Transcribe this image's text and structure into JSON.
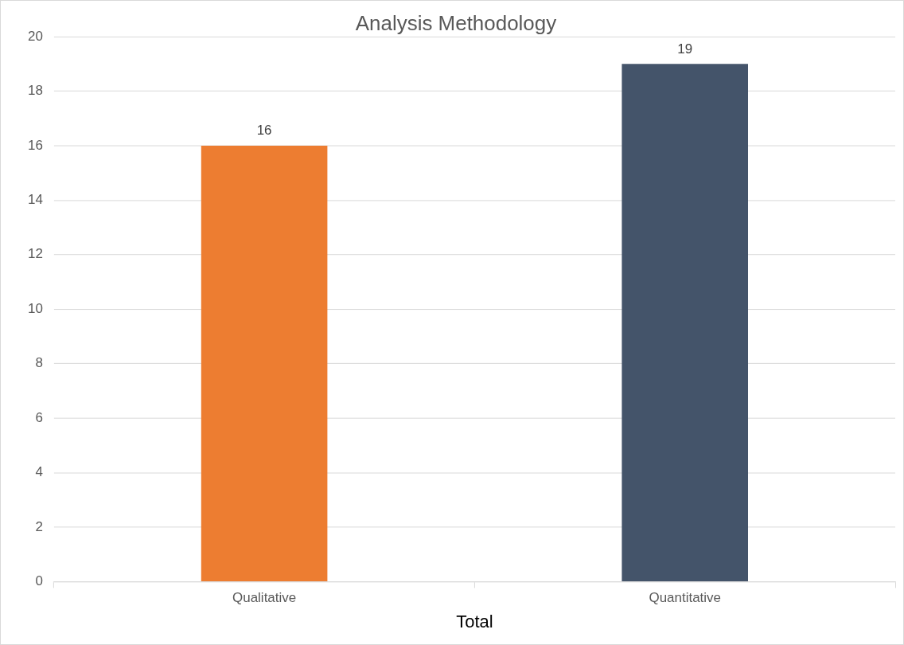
{
  "chart_data": {
    "type": "bar",
    "title": "Analysis Methodology",
    "xlabel": "Total",
    "categories": [
      "Qualitative",
      "Quantitative"
    ],
    "values": [
      16,
      19
    ],
    "colors": [
      "#ed7d31",
      "#44546a"
    ],
    "ylim": [
      0,
      20
    ],
    "yticks": [
      0,
      2,
      4,
      6,
      8,
      10,
      12,
      14,
      16,
      18,
      20
    ],
    "grid": "y",
    "data_labels": true,
    "legend": false
  }
}
